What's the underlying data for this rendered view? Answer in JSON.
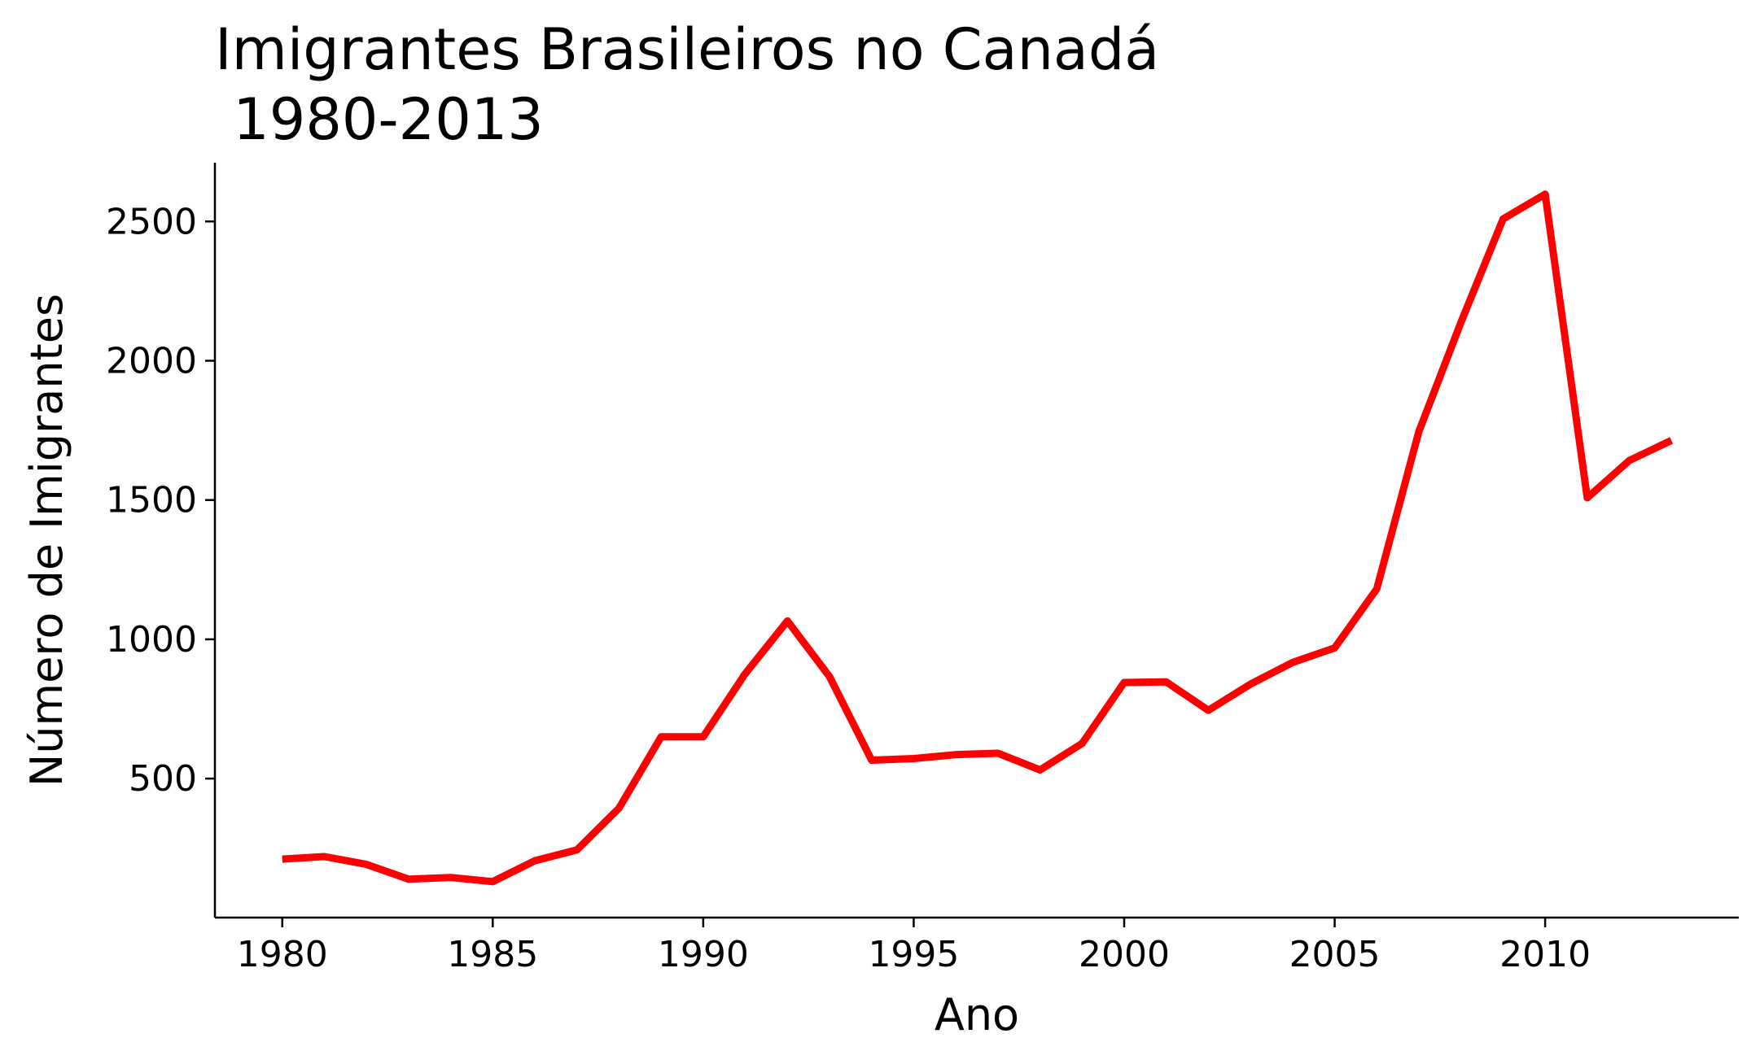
{
  "chart_data": {
    "type": "line",
    "title": "Imigrantes Brasileiros no Canadá\n 1980-2013",
    "xlabel": "Ano",
    "ylabel": "Número de Imigrantes",
    "xlim": [
      1978.4,
      2014.6
    ],
    "ylim": [
      1,
      2711
    ],
    "x_ticks": [
      1980,
      1985,
      1990,
      1995,
      2000,
      2005,
      2010
    ],
    "y_ticks": [
      500,
      1000,
      1500,
      2000,
      2500
    ],
    "grid": false,
    "legend": "none",
    "x": [
      1980,
      1981,
      1982,
      1983,
      1984,
      1985,
      1986,
      1987,
      1988,
      1989,
      1990,
      1991,
      1992,
      1993,
      1994,
      1995,
      1996,
      1997,
      1998,
      1999,
      2000,
      2001,
      2002,
      2003,
      2004,
      2005,
      2006,
      2007,
      2008,
      2009,
      2010,
      2011,
      2012,
      2013
    ],
    "series": [
      {
        "color": "#ff0000",
        "values": [
          211,
          220,
          192,
          139,
          145,
          130,
          205,
          244,
          394,
          650,
          650,
          877,
          1066,
          866,
          566,
          572,
          586,
          591,
          531,
          626,
          845,
          847,
          745,
          839,
          917,
          969,
          1181,
          1746,
          2138,
          2509,
          2598,
          1508,
          1642,
          1714
        ]
      }
    ],
    "spines": [
      "left",
      "bottom"
    ]
  }
}
